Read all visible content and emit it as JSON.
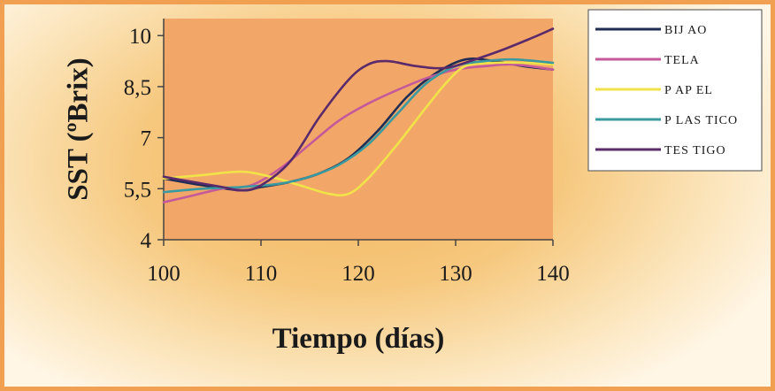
{
  "chart_data": {
    "type": "line",
    "title": "",
    "xlabel": "Tiempo (días)",
    "ylabel": "SST (ºBrix)",
    "xlim": [
      100,
      140
    ],
    "ylim": [
      4,
      10.5
    ],
    "x_ticks": [
      {
        "value": 100,
        "label": "100"
      },
      {
        "value": 110,
        "label": "110"
      },
      {
        "value": 120,
        "label": "120"
      },
      {
        "value": 130,
        "label": "130"
      },
      {
        "value": 140,
        "label": "140"
      }
    ],
    "y_ticks": [
      {
        "value": 4,
        "label": "4"
      },
      {
        "value": 5.5,
        "label": "5,5"
      },
      {
        "value": 7,
        "label": "7"
      },
      {
        "value": 8.5,
        "label": "8,5"
      },
      {
        "value": 10,
        "label": "10"
      }
    ],
    "grid": false,
    "legend_position": "top-right",
    "series": [
      {
        "name": "BIJ AO",
        "color": "#1f2d55",
        "points": [
          [
            100,
            5.8
          ],
          [
            104,
            5.6
          ],
          [
            108,
            5.45
          ],
          [
            110,
            5.55
          ],
          [
            113,
            5.7
          ],
          [
            116,
            5.95
          ],
          [
            119,
            6.4
          ],
          [
            122,
            7.2
          ],
          [
            125,
            8.2
          ],
          [
            128,
            8.9
          ],
          [
            131,
            9.3
          ],
          [
            134,
            9.25
          ],
          [
            137,
            9.1
          ],
          [
            140,
            9.0
          ]
        ]
      },
      {
        "name": "TELA",
        "color": "#c45a9a",
        "points": [
          [
            100,
            5.1
          ],
          [
            103,
            5.3
          ],
          [
            106,
            5.5
          ],
          [
            109,
            5.6
          ],
          [
            112,
            6.1
          ],
          [
            115,
            6.8
          ],
          [
            118,
            7.5
          ],
          [
            121,
            8.0
          ],
          [
            124,
            8.4
          ],
          [
            127,
            8.75
          ],
          [
            130,
            9.0
          ],
          [
            133,
            9.1
          ],
          [
            136,
            9.15
          ],
          [
            140,
            9.0
          ]
        ]
      },
      {
        "name": "P AP EL",
        "color": "#f2e24a",
        "points": [
          [
            100,
            5.8
          ],
          [
            104,
            5.9
          ],
          [
            108,
            6.0
          ],
          [
            111,
            5.85
          ],
          [
            114,
            5.6
          ],
          [
            117,
            5.35
          ],
          [
            119,
            5.35
          ],
          [
            121,
            5.8
          ],
          [
            124,
            6.8
          ],
          [
            127,
            7.9
          ],
          [
            129,
            8.6
          ],
          [
            131,
            9.1
          ],
          [
            134,
            9.2
          ],
          [
            137,
            9.2
          ],
          [
            140,
            9.15
          ]
        ]
      },
      {
        "name": "P LAS TICO",
        "color": "#3a9aa0",
        "points": [
          [
            100,
            5.4
          ],
          [
            104,
            5.5
          ],
          [
            108,
            5.55
          ],
          [
            112,
            5.65
          ],
          [
            115,
            5.85
          ],
          [
            118,
            6.2
          ],
          [
            121,
            6.8
          ],
          [
            124,
            7.7
          ],
          [
            127,
            8.6
          ],
          [
            130,
            9.1
          ],
          [
            133,
            9.25
          ],
          [
            136,
            9.3
          ],
          [
            140,
            9.2
          ]
        ]
      },
      {
        "name": "TES TIGO",
        "color": "#5a2a6a",
        "points": [
          [
            100,
            5.85
          ],
          [
            103,
            5.7
          ],
          [
            106,
            5.55
          ],
          [
            108,
            5.45
          ],
          [
            110,
            5.6
          ],
          [
            113,
            6.3
          ],
          [
            116,
            7.6
          ],
          [
            119,
            8.7
          ],
          [
            121,
            9.15
          ],
          [
            123,
            9.25
          ],
          [
            126,
            9.1
          ],
          [
            129,
            9.05
          ],
          [
            132,
            9.3
          ],
          [
            135,
            9.6
          ],
          [
            138,
            9.95
          ],
          [
            140,
            10.2
          ]
        ]
      }
    ]
  }
}
